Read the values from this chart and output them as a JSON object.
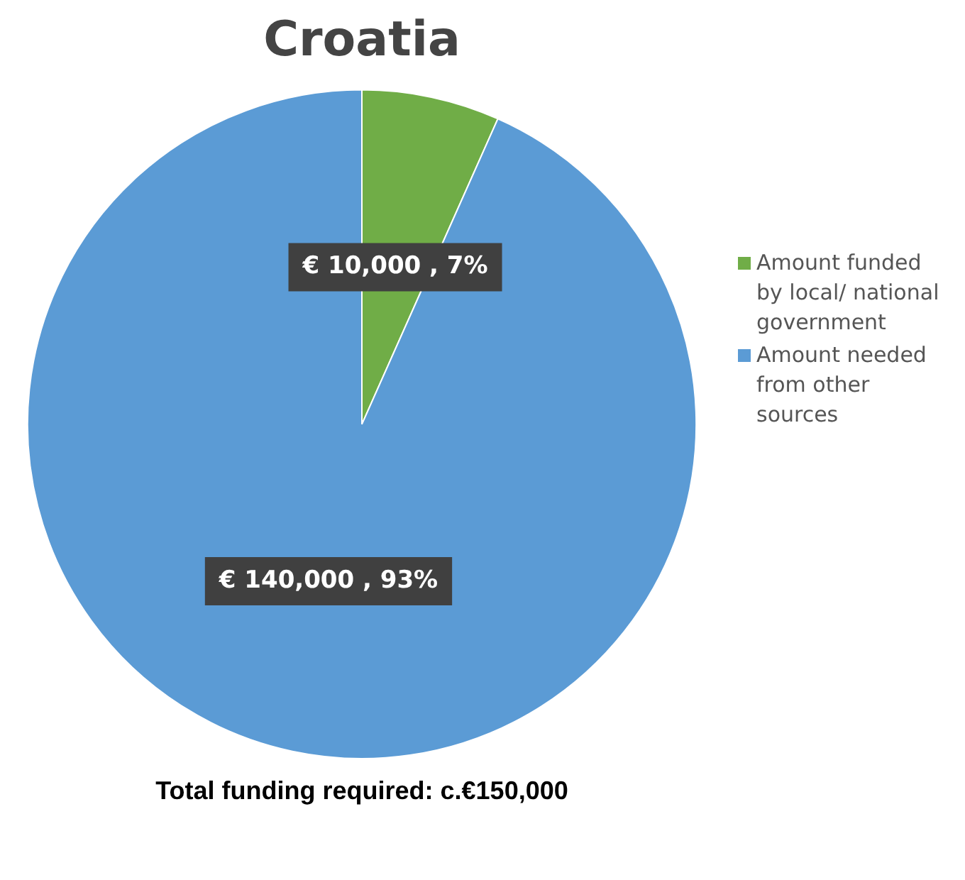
{
  "chart_data": {
    "type": "pie",
    "title": "Croatia",
    "categories": [
      "Amount funded by local/ national government",
      "Amount needed from other sources"
    ],
    "values": [
      10000,
      140000
    ],
    "colors": [
      "#70ad47",
      "#5b9bd5"
    ],
    "value_labels": [
      "€ 10,000 , 7%",
      "€ 140,000 , 93%"
    ],
    "legend": "right",
    "annotations": [
      "Total funding required: c.€150,000"
    ]
  }
}
